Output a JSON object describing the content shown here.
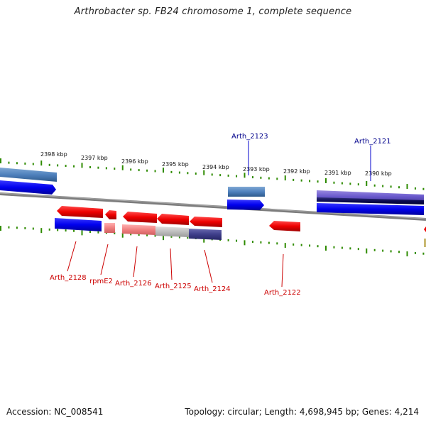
{
  "title": "Arthrobacter sp. FB24 chromosome 1, complete sequence",
  "footer": {
    "accession": "Accession: NC_008541",
    "summary": "Topology: circular; Length: 4,698,945 bp; Genes: 4,214"
  },
  "scale_labels": [
    "2398 kbp",
    "2397 kbp",
    "2396 kbp",
    "2395 kbp",
    "2394 kbp",
    "2393 kbp",
    "2392 kbp",
    "2391 kbp",
    "2390 kbp"
  ],
  "top_gene_labels": [
    "Arth_2123",
    "Arth_2121"
  ],
  "bottom_gene_labels": [
    "Arth_2128",
    "rpmE2",
    "Arth_2126",
    "Arth_2125",
    "Arth_2124",
    "Arth_2122"
  ],
  "colors": {
    "forward_cds": "#0000ee",
    "forward_gene": "#4f81bd",
    "reverse_cds": "#ee0000",
    "reverse_gene": "#f08080",
    "tick": "#2e8b00",
    "backbone": "#888888",
    "label_top": "#00008b",
    "label_bottom": "#cc0000"
  }
}
